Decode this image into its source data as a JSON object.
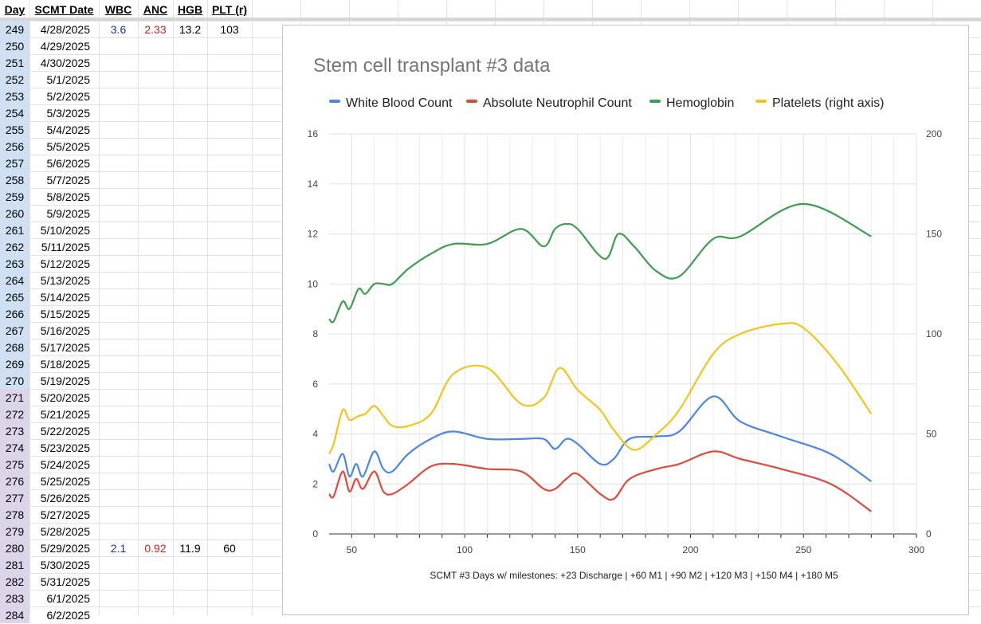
{
  "sheet": {
    "headers": {
      "day": "Day",
      "date": "SCMT Date",
      "wbc": "WBC",
      "anc": "ANC",
      "hgb": "HGB",
      "plt": "PLT (r)"
    },
    "rows": [
      {
        "day": "249",
        "date": "4/28/2025",
        "wbc": "3.6",
        "anc": "2.33",
        "hgb": "13.2",
        "plt": "103"
      },
      {
        "day": "250",
        "date": "4/29/2025",
        "wbc": "",
        "anc": "",
        "hgb": "",
        "plt": ""
      },
      {
        "day": "251",
        "date": "4/30/2025",
        "wbc": "",
        "anc": "",
        "hgb": "",
        "plt": ""
      },
      {
        "day": "252",
        "date": "5/1/2025",
        "wbc": "",
        "anc": "",
        "hgb": "",
        "plt": ""
      },
      {
        "day": "253",
        "date": "5/2/2025",
        "wbc": "",
        "anc": "",
        "hgb": "",
        "plt": ""
      },
      {
        "day": "254",
        "date": "5/3/2025",
        "wbc": "",
        "anc": "",
        "hgb": "",
        "plt": ""
      },
      {
        "day": "255",
        "date": "5/4/2025",
        "wbc": "",
        "anc": "",
        "hgb": "",
        "plt": ""
      },
      {
        "day": "256",
        "date": "5/5/2025",
        "wbc": "",
        "anc": "",
        "hgb": "",
        "plt": ""
      },
      {
        "day": "257",
        "date": "5/6/2025",
        "wbc": "",
        "anc": "",
        "hgb": "",
        "plt": ""
      },
      {
        "day": "258",
        "date": "5/7/2025",
        "wbc": "",
        "anc": "",
        "hgb": "",
        "plt": ""
      },
      {
        "day": "259",
        "date": "5/8/2025",
        "wbc": "",
        "anc": "",
        "hgb": "",
        "plt": ""
      },
      {
        "day": "260",
        "date": "5/9/2025",
        "wbc": "",
        "anc": "",
        "hgb": "",
        "plt": ""
      },
      {
        "day": "261",
        "date": "5/10/2025",
        "wbc": "",
        "anc": "",
        "hgb": "",
        "plt": ""
      },
      {
        "day": "262",
        "date": "5/11/2025",
        "wbc": "",
        "anc": "",
        "hgb": "",
        "plt": ""
      },
      {
        "day": "263",
        "date": "5/12/2025",
        "wbc": "",
        "anc": "",
        "hgb": "",
        "plt": ""
      },
      {
        "day": "264",
        "date": "5/13/2025",
        "wbc": "",
        "anc": "",
        "hgb": "",
        "plt": ""
      },
      {
        "day": "265",
        "date": "5/14/2025",
        "wbc": "",
        "anc": "",
        "hgb": "",
        "plt": ""
      },
      {
        "day": "266",
        "date": "5/15/2025",
        "wbc": "",
        "anc": "",
        "hgb": "",
        "plt": ""
      },
      {
        "day": "267",
        "date": "5/16/2025",
        "wbc": "",
        "anc": "",
        "hgb": "",
        "plt": ""
      },
      {
        "day": "268",
        "date": "5/17/2025",
        "wbc": "",
        "anc": "",
        "hgb": "",
        "plt": ""
      },
      {
        "day": "269",
        "date": "5/18/2025",
        "wbc": "",
        "anc": "",
        "hgb": "",
        "plt": ""
      },
      {
        "day": "270",
        "date": "5/19/2025",
        "wbc": "",
        "anc": "",
        "hgb": "",
        "plt": ""
      },
      {
        "day": "271",
        "date": "5/20/2025",
        "wbc": "",
        "anc": "",
        "hgb": "",
        "plt": ""
      },
      {
        "day": "272",
        "date": "5/21/2025",
        "wbc": "",
        "anc": "",
        "hgb": "",
        "plt": ""
      },
      {
        "day": "273",
        "date": "5/22/2025",
        "wbc": "",
        "anc": "",
        "hgb": "",
        "plt": ""
      },
      {
        "day": "274",
        "date": "5/23/2025",
        "wbc": "",
        "anc": "",
        "hgb": "",
        "plt": ""
      },
      {
        "day": "275",
        "date": "5/24/2025",
        "wbc": "",
        "anc": "",
        "hgb": "",
        "plt": ""
      },
      {
        "day": "276",
        "date": "5/25/2025",
        "wbc": "",
        "anc": "",
        "hgb": "",
        "plt": ""
      },
      {
        "day": "277",
        "date": "5/26/2025",
        "wbc": "",
        "anc": "",
        "hgb": "",
        "plt": ""
      },
      {
        "day": "278",
        "date": "5/27/2025",
        "wbc": "",
        "anc": "",
        "hgb": "",
        "plt": ""
      },
      {
        "day": "279",
        "date": "5/28/2025",
        "wbc": "",
        "anc": "",
        "hgb": "",
        "plt": ""
      },
      {
        "day": "280",
        "date": "5/29/2025",
        "wbc": "2.1",
        "anc": "0.92",
        "hgb": "11.9",
        "plt": "60"
      },
      {
        "day": "281",
        "date": "5/30/2025",
        "wbc": "",
        "anc": "",
        "hgb": "",
        "plt": ""
      },
      {
        "day": "282",
        "date": "5/31/2025",
        "wbc": "",
        "anc": "",
        "hgb": "",
        "plt": ""
      },
      {
        "day": "283",
        "date": "6/1/2025",
        "wbc": "",
        "anc": "",
        "hgb": "",
        "plt": ""
      },
      {
        "day": "284",
        "date": "6/2/2025",
        "wbc": "",
        "anc": "",
        "hgb": "",
        "plt": ""
      }
    ],
    "day_colors": {
      "before": "#cfe0f3",
      "after": "#ddd4ea",
      "split_day": 271
    }
  },
  "chart_data": {
    "type": "line",
    "title": "Stem cell transplant #3 data",
    "xlabel": "SCMT #3 Days w/ milestones: +23 Discharge | +60 M1 | +90 M2 | +120 M3 | +150 M4 | +180 M5",
    "ylabel": "",
    "ylabel_right": "",
    "xlim": [
      40,
      300
    ],
    "ylim": [
      0,
      16
    ],
    "ylim_right": [
      0,
      200
    ],
    "x_ticks": [
      50,
      100,
      150,
      200,
      250,
      300
    ],
    "y_ticks": [
      0,
      2,
      4,
      6,
      8,
      10,
      12,
      14,
      16
    ],
    "y_ticks_right": [
      0,
      50,
      100,
      150,
      200
    ],
    "grid": true,
    "legend_position": "top",
    "series": [
      {
        "name": "White Blood Count",
        "color": "#4a86e8",
        "axis": "left",
        "x": [
          40,
          42,
          46,
          49,
          52,
          55,
          60,
          64,
          68,
          75,
          85,
          95,
          110,
          125,
          135,
          140,
          145,
          150,
          160,
          166,
          173,
          185,
          195,
          210,
          222,
          240,
          262,
          280
        ],
        "y": [
          2.8,
          2.5,
          3.2,
          2.3,
          2.8,
          2.3,
          3.3,
          2.6,
          2.5,
          3.2,
          3.8,
          4.1,
          3.8,
          3.8,
          3.8,
          3.4,
          3.8,
          3.6,
          2.8,
          3.0,
          3.8,
          3.9,
          4.1,
          5.5,
          4.5,
          3.9,
          3.2,
          2.1
        ]
      },
      {
        "name": "Absolute Neutrophil Count",
        "color": "#e04a3a",
        "axis": "left",
        "x": [
          40,
          42,
          46,
          49,
          52,
          55,
          60,
          64,
          68,
          75,
          85,
          95,
          110,
          125,
          135,
          140,
          145,
          150,
          160,
          166,
          173,
          185,
          195,
          210,
          222,
          240,
          262,
          280
        ],
        "y": [
          1.6,
          1.5,
          2.5,
          1.7,
          2.2,
          1.8,
          2.5,
          1.7,
          1.6,
          2.0,
          2.7,
          2.8,
          2.6,
          2.5,
          1.8,
          1.8,
          2.2,
          2.4,
          1.6,
          1.4,
          2.2,
          2.6,
          2.8,
          3.3,
          3.0,
          2.6,
          2.0,
          0.9
        ]
      },
      {
        "name": "Hemoglobin",
        "color": "#3c9e4f",
        "axis": "left",
        "x": [
          40,
          42,
          46,
          49,
          53,
          56,
          60,
          64,
          68,
          75,
          85,
          95,
          110,
          125,
          135,
          140,
          145,
          150,
          162,
          168,
          175,
          185,
          195,
          210,
          222,
          250,
          280
        ],
        "y": [
          8.6,
          8.5,
          9.3,
          9.0,
          9.8,
          9.6,
          10.0,
          10.0,
          10.0,
          10.6,
          11.2,
          11.6,
          11.6,
          12.2,
          11.5,
          12.2,
          12.4,
          12.2,
          11.0,
          12.0,
          11.5,
          10.5,
          10.3,
          11.8,
          11.9,
          13.2,
          11.9
        ]
      },
      {
        "name": "Platelets (right axis)",
        "color": "#f5c319",
        "axis": "right",
        "x": [
          40,
          42,
          46,
          49,
          53,
          56,
          60,
          64,
          68,
          75,
          85,
          95,
          110,
          125,
          135,
          142,
          150,
          160,
          166,
          175,
          185,
          195,
          210,
          222,
          240,
          250,
          265,
          280
        ],
        "y": [
          40,
          45,
          62,
          57,
          59,
          60,
          64,
          59,
          54,
          54,
          60,
          80,
          83,
          65,
          68,
          83,
          72,
          62,
          52,
          42,
          50,
          62,
          90,
          100,
          105,
          103,
          85,
          60
        ]
      }
    ]
  }
}
